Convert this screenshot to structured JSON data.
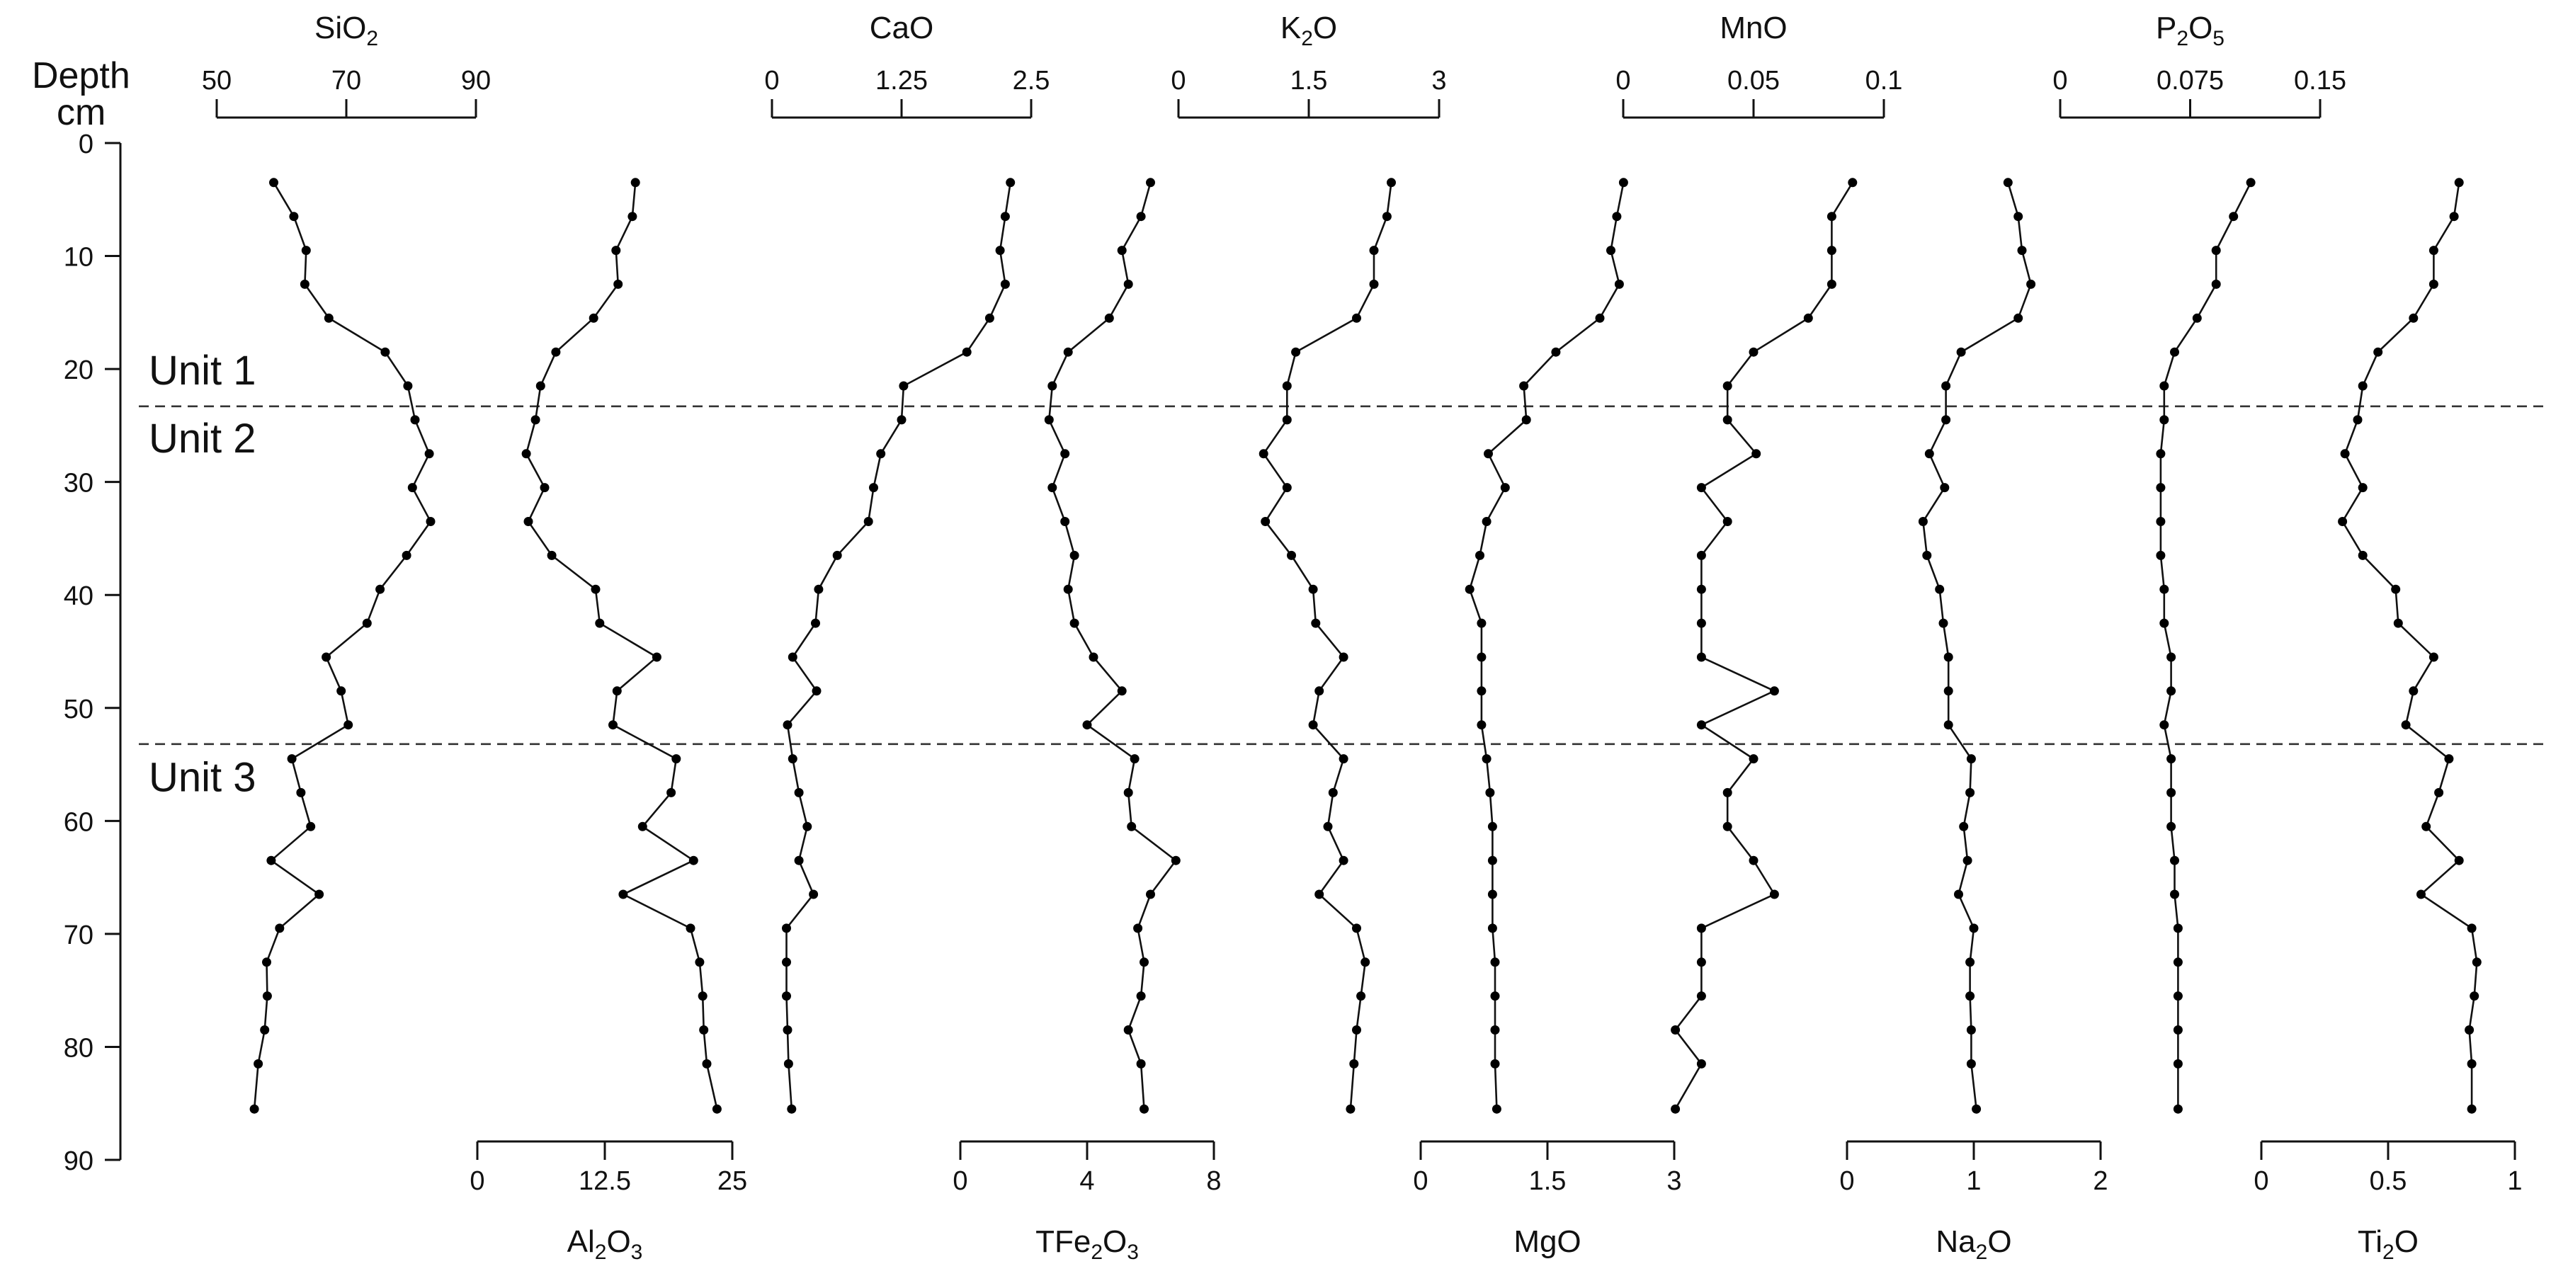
{
  "chart_data": {
    "type": "line",
    "depth_axis": {
      "title_line1": "Depth",
      "title_line2": "cm",
      "range": [
        0,
        90
      ],
      "ticks": [
        "0",
        "10",
        "20",
        "30",
        "40",
        "50",
        "60",
        "70",
        "80",
        "90"
      ],
      "inverted": true
    },
    "units": [
      {
        "label": "Unit 1",
        "label_depth": 20
      },
      {
        "label": "Unit 2",
        "label_depth": 26
      },
      {
        "label": "Unit 3",
        "label_depth": 56
      }
    ],
    "boundaries": [
      23.3,
      53.2
    ],
    "depths": [
      3.5,
      6.5,
      9.5,
      12.5,
      15.5,
      18.5,
      21.5,
      24.5,
      27.5,
      30.5,
      33.5,
      36.5,
      39.5,
      42.5,
      45.5,
      48.5,
      51.5,
      54.5,
      57.5,
      60.5,
      63.5,
      66.5,
      69.5,
      72.5,
      75.5,
      78.5,
      81.5,
      85.5
    ],
    "series": [
      {
        "name": "SiO2",
        "name_main": "SiO",
        "name_sub": "2",
        "axis_position": "top",
        "ticks": [
          "50",
          "70",
          "90"
        ],
        "range": [
          50,
          90
        ],
        "values": [
          58.8,
          61.9,
          63.8,
          63.6,
          67.3,
          76.0,
          79.5,
          80.6,
          82.8,
          80.2,
          83.0,
          79.3,
          75.2,
          73.2,
          66.9,
          69.2,
          70.3,
          61.6,
          63.0,
          64.5,
          58.4,
          65.8,
          59.7,
          57.7,
          57.8,
          57.4,
          56.4,
          55.8
        ]
      },
      {
        "name": "Al2O3",
        "name_main": "Al",
        "name_sub": "2",
        "name_tail": "O",
        "name_sub2": "3",
        "axis_position": "bottom",
        "ticks": [
          "0",
          "12.5",
          "25"
        ],
        "range": [
          0,
          25
        ],
        "values": [
          15.5,
          15.2,
          13.6,
          13.8,
          11.4,
          7.7,
          6.2,
          5.7,
          4.8,
          6.6,
          5.0,
          7.3,
          11.6,
          12.0,
          17.6,
          13.7,
          13.3,
          19.5,
          19.0,
          16.2,
          21.2,
          14.3,
          20.9,
          21.8,
          22.1,
          22.2,
          22.5,
          23.5
        ]
      },
      {
        "name": "CaO",
        "axis_position": "top",
        "ticks": [
          "0",
          "1.25",
          "2.5"
        ],
        "range": [
          0,
          2.5
        ],
        "values": [
          2.3,
          2.25,
          2.2,
          2.25,
          2.1,
          1.88,
          1.27,
          1.25,
          1.05,
          0.98,
          0.93,
          0.63,
          0.45,
          0.42,
          0.2,
          0.43,
          0.15,
          0.2,
          0.26,
          0.34,
          0.26,
          0.4,
          0.14,
          0.14,
          0.14,
          0.15,
          0.16,
          0.19
        ]
      },
      {
        "name": "TFe2O3",
        "name_main": "TFe",
        "name_sub": "2",
        "name_tail": "O",
        "name_sub2": "3",
        "axis_position": "bottom",
        "ticks": [
          "0",
          "4",
          "8"
        ],
        "range": [
          0,
          8
        ],
        "values": [
          6.0,
          5.7,
          5.1,
          5.3,
          4.7,
          3.4,
          2.9,
          2.8,
          3.3,
          2.9,
          3.3,
          3.6,
          3.4,
          3.6,
          4.2,
          5.1,
          4.0,
          5.5,
          5.3,
          5.4,
          6.8,
          6.0,
          5.6,
          5.8,
          5.7,
          5.3,
          5.7,
          5.8
        ]
      },
      {
        "name": "K2O",
        "name_main": "K",
        "name_sub": "2",
        "name_tail": "O",
        "axis_position": "top",
        "ticks": [
          "0",
          "1.5",
          "3"
        ],
        "range": [
          0,
          3
        ],
        "values": [
          2.45,
          2.4,
          2.25,
          2.25,
          2.05,
          1.35,
          1.25,
          1.25,
          0.98,
          1.25,
          1.0,
          1.3,
          1.55,
          1.58,
          1.9,
          1.62,
          1.55,
          1.9,
          1.78,
          1.72,
          1.9,
          1.62,
          2.05,
          2.15,
          2.1,
          2.05,
          2.02,
          1.98
        ]
      },
      {
        "name": "MgO",
        "axis_position": "bottom",
        "ticks": [
          "0",
          "1.5",
          "3"
        ],
        "range": [
          0,
          3
        ],
        "values": [
          2.4,
          2.32,
          2.25,
          2.35,
          2.12,
          1.6,
          1.22,
          1.25,
          0.8,
          1.0,
          0.78,
          0.7,
          0.58,
          0.72,
          0.72,
          0.72,
          0.72,
          0.78,
          0.82,
          0.85,
          0.85,
          0.85,
          0.85,
          0.88,
          0.88,
          0.88,
          0.88,
          0.9
        ]
      },
      {
        "name": "MnO",
        "axis_position": "top",
        "ticks": [
          "0",
          "0.05",
          "0.1"
        ],
        "range": [
          0,
          0.1
        ],
        "values": [
          0.088,
          0.08,
          0.08,
          0.08,
          0.071,
          0.05,
          0.04,
          0.04,
          0.051,
          0.03,
          0.04,
          0.03,
          0.03,
          0.03,
          0.03,
          0.058,
          0.03,
          0.05,
          0.04,
          0.04,
          0.05,
          0.058,
          0.03,
          0.03,
          0.03,
          0.02,
          0.03,
          0.02
        ]
      },
      {
        "name": "Na2O",
        "name_main": "Na",
        "name_sub": "2",
        "name_tail": "O",
        "axis_position": "bottom",
        "ticks": [
          "0",
          "1",
          "2"
        ],
        "range": [
          0,
          2
        ],
        "values": [
          1.27,
          1.35,
          1.38,
          1.45,
          1.35,
          0.9,
          0.78,
          0.78,
          0.65,
          0.77,
          0.6,
          0.63,
          0.73,
          0.76,
          0.8,
          0.8,
          0.8,
          0.98,
          0.97,
          0.92,
          0.95,
          0.88,
          1.0,
          0.97,
          0.97,
          0.98,
          0.98,
          1.02
        ]
      },
      {
        "name": "P2O5",
        "name_main": "P",
        "name_sub": "2",
        "name_tail": "O",
        "name_sub2": "5",
        "axis_position": "top",
        "ticks": [
          "0",
          "0.075",
          "0.15"
        ],
        "range": [
          0,
          0.15
        ],
        "values": [
          0.11,
          0.1,
          0.09,
          0.09,
          0.079,
          0.066,
          0.06,
          0.06,
          0.058,
          0.058,
          0.058,
          0.058,
          0.06,
          0.06,
          0.064,
          0.064,
          0.06,
          0.064,
          0.064,
          0.064,
          0.066,
          0.066,
          0.068,
          0.068,
          0.068,
          0.068,
          0.068,
          0.068
        ]
      },
      {
        "name": "Ti2O",
        "name_main": "Ti",
        "name_sub": "2",
        "name_tail": "O",
        "axis_position": "bottom",
        "ticks": [
          "0",
          "0.5",
          "1"
        ],
        "range": [
          0,
          1
        ],
        "values": [
          0.78,
          0.76,
          0.68,
          0.68,
          0.6,
          0.46,
          0.4,
          0.38,
          0.33,
          0.4,
          0.32,
          0.4,
          0.53,
          0.54,
          0.68,
          0.6,
          0.57,
          0.74,
          0.7,
          0.65,
          0.78,
          0.63,
          0.83,
          0.85,
          0.84,
          0.82,
          0.83,
          0.83
        ]
      }
    ]
  }
}
